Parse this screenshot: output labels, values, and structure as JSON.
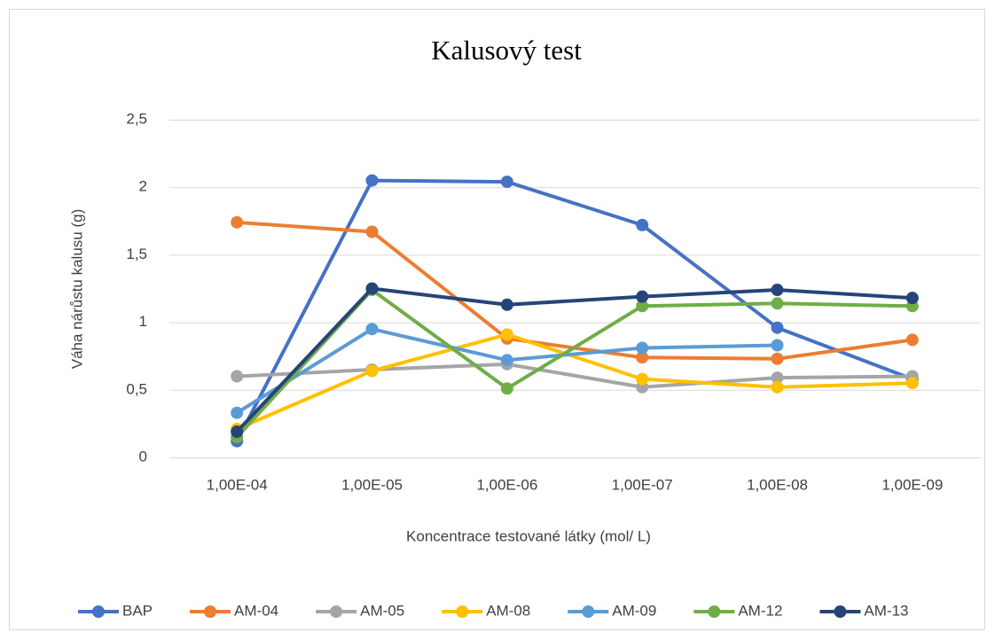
{
  "chart_data": {
    "type": "line",
    "title": "Kalusový test",
    "y_label": "Váha nárůstu kalusu (g)",
    "x_label": "Koncentrace testované látky (mol/ L)",
    "categories": [
      "1,00E-04",
      "1,00E-05",
      "1,00E-06",
      "1,00E-07",
      "1,00E-08",
      "1,00E-09"
    ],
    "ylim": [
      0,
      2.5
    ],
    "yticks": [
      0,
      {
        "value": 0.5,
        "label": "0,5"
      },
      1,
      {
        "value": 1.5,
        "label": "1,5"
      },
      2,
      {
        "value": 2.5,
        "label": "2,5"
      }
    ],
    "grid": true,
    "legend": "bottom",
    "series": [
      {
        "name": "BAP",
        "color": "#4472c4",
        "values": [
          0.12,
          2.05,
          2.04,
          1.72,
          0.96,
          0.58
        ]
      },
      {
        "name": "AM-04",
        "color": "#ed7d31",
        "values": [
          1.74,
          1.67,
          0.88,
          0.74,
          0.73,
          0.87
        ]
      },
      {
        "name": "AM-05",
        "color": "#a5a5a5",
        "values": [
          0.6,
          0.65,
          0.69,
          0.52,
          0.59,
          0.6
        ]
      },
      {
        "name": "AM-08",
        "color": "#ffc000",
        "values": [
          0.21,
          0.64,
          0.91,
          0.58,
          0.52,
          0.55
        ]
      },
      {
        "name": "AM-09",
        "color": "#5b9bd5",
        "values": [
          0.33,
          0.95,
          0.72,
          0.81,
          0.83,
          null
        ]
      },
      {
        "name": "AM-12",
        "color": "#70ad47",
        "values": [
          0.15,
          1.24,
          0.51,
          1.12,
          1.14,
          1.12
        ]
      },
      {
        "name": "AM-13",
        "color": "#264478",
        "values": [
          0.19,
          1.25,
          1.13,
          1.19,
          1.24,
          1.18
        ]
      }
    ]
  }
}
